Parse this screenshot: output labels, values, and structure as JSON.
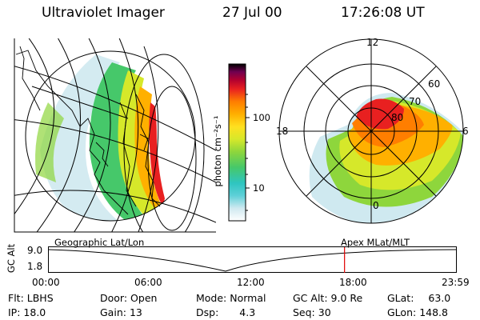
{
  "header": {
    "instrument": "Ultraviolet Imager",
    "date": "27 Jul 00",
    "time": "17:26:08 UT"
  },
  "colorbar": {
    "unit_label": "photon cm⁻²s⁻¹",
    "ticks": [
      "100",
      "10"
    ],
    "colors": [
      "#ffffff",
      "#cfe9f0",
      "#5fd0d8",
      "#2ec5c0",
      "#46c86a",
      "#8ed63c",
      "#d6e82a",
      "#ffe020",
      "#ffb000",
      "#ff7e00",
      "#e82020",
      "#b00030",
      "#700050",
      "#30003a",
      "#000000"
    ]
  },
  "geo_map": {
    "caption": "Geographic Lat/Lon"
  },
  "polar_plot": {
    "caption": "Apex MLat/MLT",
    "mlt_labels": [
      "12",
      "18",
      "6",
      "0"
    ],
    "lat_labels": [
      "60",
      "70",
      "80"
    ]
  },
  "altitude_plot": {
    "ylabel": "GC Alt",
    "yticks": [
      "9.0",
      "1.8"
    ],
    "xticks": [
      "00:00",
      "06:00",
      "12:00",
      "18:00",
      "23:59"
    ],
    "marker_time_hours": 17.43
  },
  "info": {
    "flt_label": "Flt:",
    "flt_value": "LBHS",
    "door_label": "Door:",
    "door_value": "Open",
    "mode_label": "Mode:",
    "mode_value": "Normal",
    "gcalt_label": "GC Alt:",
    "gcalt_value": "9.0 Re",
    "glat_label": "GLat:",
    "glat_value": "63.0",
    "ip_label": "IP:",
    "ip_value": "18.0",
    "gain_label": "Gain:",
    "gain_value": "13",
    "dsp_label": "Dsp:",
    "dsp_value": "4.3",
    "seq_label": "Seq:",
    "seq_value": "30",
    "glon_label": "GLon:",
    "glon_value": "148.8"
  }
}
